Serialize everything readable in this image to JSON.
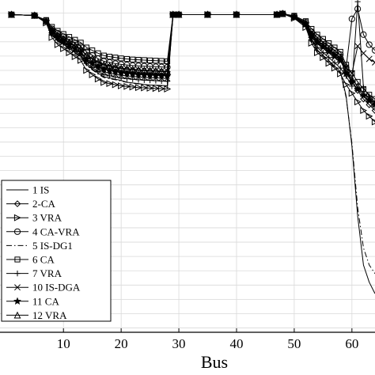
{
  "chart_data": {
    "type": "line",
    "title": "",
    "xlabel": "Bus",
    "ylabel": "",
    "xlim": [
      -1,
      64
    ],
    "ylim": [
      0.8885,
      1.0046
    ],
    "x_ticks": [
      10,
      20,
      30,
      40,
      50,
      60
    ],
    "x_tick_labels": [
      "10",
      "20",
      "30",
      "40",
      "50",
      "60"
    ],
    "grid": true,
    "legend_position": "bottom-left",
    "series": [
      {
        "name": "1 IS",
        "marker": "none",
        "dash": "solid",
        "x": [
          1,
          5,
          7,
          8,
          9,
          10,
          11,
          12,
          13,
          14,
          15,
          16,
          17,
          18,
          19,
          20,
          21,
          22,
          23,
          24,
          25,
          26,
          27,
          28,
          29,
          30,
          35,
          40,
          47,
          48,
          50,
          52,
          53,
          54,
          55,
          56,
          57,
          58,
          59,
          60,
          61,
          62,
          63,
          64
        ],
        "y": [
          0.9995,
          0.9992,
          0.997,
          0.9925,
          0.9905,
          0.9891,
          0.9876,
          0.9862,
          0.985,
          0.982,
          0.9805,
          0.979,
          0.9778,
          0.9774,
          0.9769,
          0.9765,
          0.9759,
          0.9756,
          0.9754,
          0.9751,
          0.9749,
          0.9748,
          0.9747,
          0.9746,
          0.9995,
          0.9995,
          0.9995,
          0.9995,
          0.9995,
          0.9998,
          0.9985,
          0.9955,
          0.9905,
          0.9872,
          0.9853,
          0.9834,
          0.9815,
          0.9795,
          0.971,
          0.9535,
          0.929,
          0.912,
          0.906,
          0.902
        ]
      },
      {
        "name": "2-CA",
        "marker": "diamond",
        "dash": "solid",
        "x": [
          1,
          5,
          7,
          8,
          9,
          10,
          11,
          12,
          13,
          14,
          15,
          16,
          17,
          18,
          19,
          20,
          21,
          22,
          23,
          24,
          25,
          26,
          27,
          28,
          29,
          30,
          35,
          40,
          47,
          48,
          50,
          52,
          53,
          54,
          55,
          56,
          57,
          58,
          59,
          60,
          61,
          62,
          63,
          64
        ],
        "y": [
          0.9995,
          0.9992,
          0.9972,
          0.994,
          0.9922,
          0.9908,
          0.9895,
          0.9883,
          0.9872,
          0.9852,
          0.984,
          0.9827,
          0.9818,
          0.9814,
          0.981,
          0.9806,
          0.9804,
          0.9802,
          0.98,
          0.9799,
          0.9798,
          0.9797,
          0.9796,
          0.9795,
          0.9995,
          0.9995,
          0.9995,
          0.9995,
          0.9995,
          0.9998,
          0.9988,
          0.9965,
          0.9928,
          0.9905,
          0.989,
          0.9875,
          0.986,
          0.9845,
          0.98,
          0.976,
          0.973,
          0.97,
          0.968,
          0.966
        ]
      },
      {
        "name": "3 VRA",
        "marker": "triangle-right",
        "dash": "solid",
        "x": [
          1,
          5,
          7,
          8,
          9,
          10,
          11,
          12,
          13,
          14,
          15,
          16,
          17,
          18,
          19,
          20,
          21,
          22,
          23,
          24,
          25,
          26,
          27,
          28,
          29,
          30,
          35,
          40,
          47,
          48,
          50,
          52,
          53,
          54,
          55,
          56,
          57,
          58,
          59,
          60,
          61,
          62,
          63,
          64
        ],
        "y": [
          0.9995,
          0.9992,
          0.9966,
          0.9915,
          0.989,
          0.9876,
          0.9862,
          0.9848,
          0.9835,
          0.98,
          0.9785,
          0.977,
          0.9758,
          0.9754,
          0.975,
          0.9746,
          0.9744,
          0.9742,
          0.974,
          0.9739,
          0.9738,
          0.9737,
          0.9736,
          0.9735,
          0.9995,
          0.9995,
          0.9995,
          0.9995,
          0.9995,
          0.9998,
          0.9982,
          0.995,
          0.9895,
          0.9862,
          0.9845,
          0.9825,
          0.9808,
          0.9788,
          0.975,
          0.972,
          0.969,
          0.966,
          0.964,
          0.962
        ]
      },
      {
        "name": "4 CA-VRA",
        "marker": "circle",
        "dash": "solid",
        "x": [
          1,
          5,
          7,
          8,
          9,
          10,
          11,
          12,
          13,
          14,
          15,
          16,
          17,
          18,
          19,
          20,
          21,
          22,
          23,
          24,
          25,
          26,
          27,
          28,
          29,
          30,
          35,
          40,
          47,
          48,
          50,
          52,
          53,
          54,
          55,
          56,
          57,
          58,
          59,
          60,
          61,
          62,
          63,
          64
        ],
        "y": [
          0.9995,
          0.9992,
          0.9974,
          0.9945,
          0.993,
          0.9918,
          0.9906,
          0.9895,
          0.9884,
          0.9865,
          0.9853,
          0.9841,
          0.9832,
          0.9828,
          0.9824,
          0.9821,
          0.9819,
          0.9817,
          0.9816,
          0.9815,
          0.9814,
          0.9813,
          0.9812,
          0.9811,
          0.9995,
          0.9995,
          0.9995,
          0.9995,
          0.9995,
          0.9998,
          0.9989,
          0.9968,
          0.9935,
          0.9915,
          0.99,
          0.9885,
          0.987,
          0.9855,
          0.981,
          0.998,
          1.0015,
          0.9925,
          0.989,
          0.987
        ]
      },
      {
        "name": "5 IS-DG1",
        "marker": "none",
        "dash": "dashdot",
        "x": [
          1,
          5,
          7,
          8,
          9,
          10,
          11,
          12,
          13,
          14,
          15,
          16,
          17,
          18,
          19,
          20,
          21,
          22,
          23,
          24,
          25,
          26,
          27,
          28,
          29,
          30,
          35,
          40,
          47,
          48,
          50,
          52,
          53,
          54,
          55,
          56,
          57,
          58,
          59,
          60,
          61,
          62,
          63,
          64
        ],
        "y": [
          0.9995,
          0.9992,
          0.9969,
          0.9922,
          0.9902,
          0.9888,
          0.9873,
          0.9859,
          0.9847,
          0.9817,
          0.9802,
          0.9787,
          0.9775,
          0.9771,
          0.9767,
          0.9763,
          0.9758,
          0.9755,
          0.9753,
          0.975,
          0.9748,
          0.9747,
          0.9746,
          0.9745,
          0.9995,
          0.9995,
          0.9995,
          0.9995,
          0.9995,
          0.9998,
          0.9984,
          0.9953,
          0.99,
          0.9868,
          0.985,
          0.983,
          0.9812,
          0.9792,
          0.9705,
          0.9545,
          0.932,
          0.918,
          0.912,
          0.909
        ]
      },
      {
        "name": "6 CA",
        "marker": "square",
        "dash": "solid",
        "x": [
          1,
          5,
          7,
          8,
          9,
          10,
          11,
          12,
          13,
          14,
          15,
          16,
          17,
          18,
          19,
          20,
          21,
          22,
          23,
          24,
          25,
          26,
          27,
          28,
          29,
          30,
          35,
          40,
          47,
          48,
          50,
          52,
          53,
          54,
          55,
          56,
          57,
          58,
          59,
          60,
          61,
          62,
          63,
          64
        ],
        "y": [
          0.9995,
          0.9992,
          0.9976,
          0.9952,
          0.9938,
          0.9927,
          0.9917,
          0.9907,
          0.9897,
          0.988,
          0.987,
          0.986,
          0.9852,
          0.9848,
          0.9845,
          0.9842,
          0.984,
          0.9838,
          0.9837,
          0.9836,
          0.9835,
          0.9834,
          0.9833,
          0.9832,
          0.9995,
          0.9995,
          0.9995,
          0.9995,
          0.9995,
          0.9998,
          0.9991,
          0.9972,
          0.9945,
          0.9925,
          0.991,
          0.9895,
          0.988,
          0.9865,
          0.982,
          0.979,
          0.976,
          0.9735,
          0.9715,
          0.97
        ]
      },
      {
        "name": "7 VRA",
        "marker": "plus",
        "dash": "solid",
        "x": [
          1,
          5,
          7,
          8,
          9,
          10,
          11,
          12,
          13,
          14,
          15,
          16,
          17,
          18,
          19,
          20,
          21,
          22,
          23,
          24,
          25,
          26,
          27,
          28,
          29,
          30,
          35,
          40,
          47,
          48,
          50,
          52,
          53,
          54,
          55,
          56,
          57,
          58,
          59,
          60,
          61,
          62,
          63,
          64
        ],
        "y": [
          0.9995,
          0.9992,
          0.997,
          0.9928,
          0.9908,
          0.9894,
          0.988,
          0.9866,
          0.9854,
          0.9825,
          0.981,
          0.9796,
          0.9785,
          0.9781,
          0.9777,
          0.9773,
          0.9771,
          0.9769,
          0.9767,
          0.9766,
          0.9765,
          0.9764,
          0.9763,
          0.9762,
          0.9995,
          0.9995,
          0.9995,
          0.9995,
          0.9995,
          0.9998,
          0.9985,
          0.9958,
          0.991,
          0.988,
          0.9862,
          0.9845,
          0.9827,
          0.9808,
          0.978,
          0.9745,
          1.004,
          0.974,
          0.971,
          0.969
        ]
      },
      {
        "name": "10 IS-DGA",
        "marker": "cross",
        "dash": "solid",
        "x": [
          1,
          5,
          7,
          8,
          9,
          10,
          11,
          12,
          13,
          14,
          15,
          16,
          17,
          18,
          19,
          20,
          21,
          22,
          23,
          24,
          25,
          26,
          27,
          28,
          29,
          30,
          35,
          40,
          47,
          48,
          50,
          52,
          53,
          54,
          55,
          56,
          57,
          58,
          59,
          60,
          61,
          62,
          63,
          64
        ],
        "y": [
          0.9995,
          0.9992,
          0.9971,
          0.9932,
          0.9913,
          0.9899,
          0.9885,
          0.9872,
          0.986,
          0.9833,
          0.9819,
          0.9805,
          0.9795,
          0.9791,
          0.9787,
          0.9783,
          0.9781,
          0.9779,
          0.9777,
          0.9776,
          0.9775,
          0.9774,
          0.9773,
          0.9772,
          0.9995,
          0.9995,
          0.9995,
          0.9995,
          0.9995,
          0.9998,
          0.9986,
          0.996,
          0.9915,
          0.9895,
          0.9878,
          0.9862,
          0.9845,
          0.983,
          0.981,
          0.979,
          0.9885,
          0.986,
          0.984,
          0.9828
        ]
      },
      {
        "name": "11 CA",
        "marker": "star",
        "dash": "solid",
        "x": [
          1,
          5,
          7,
          8,
          9,
          10,
          11,
          12,
          13,
          14,
          15,
          16,
          17,
          18,
          19,
          20,
          21,
          22,
          23,
          24,
          25,
          26,
          27,
          28,
          29,
          30,
          35,
          40,
          47,
          48,
          50,
          52,
          53,
          54,
          55,
          56,
          57,
          58,
          59,
          60,
          61,
          62,
          63,
          64
        ],
        "y": [
          0.9995,
          0.9992,
          0.9972,
          0.9936,
          0.9917,
          0.9903,
          0.989,
          0.9877,
          0.9866,
          0.984,
          0.9827,
          0.9814,
          0.9804,
          0.98,
          0.9796,
          0.9792,
          0.979,
          0.9788,
          0.9786,
          0.9785,
          0.9784,
          0.9783,
          0.9782,
          0.9781,
          0.9995,
          0.9995,
          0.9995,
          0.9995,
          0.9995,
          0.9998,
          0.9987,
          0.9962,
          0.992,
          0.9897,
          0.9882,
          0.9866,
          0.985,
          0.9835,
          0.979,
          0.976,
          0.9735,
          0.9712,
          0.9695,
          0.968
        ]
      },
      {
        "name": "12 VRA",
        "marker": "triangle-up",
        "dash": "solid",
        "x": [
          1,
          5,
          7,
          8,
          9,
          10,
          11,
          12,
          13,
          14,
          15,
          16,
          17,
          18,
          19,
          20,
          21,
          22,
          23,
          24,
          25,
          26,
          27,
          28,
          29,
          30,
          35,
          40,
          47,
          48,
          50,
          52,
          53,
          54,
          55,
          56,
          57,
          58,
          59,
          60,
          61,
          62,
          63,
          64
        ],
        "y": [
          0.9995,
          0.9992,
          0.9973,
          0.9941,
          0.9924,
          0.9911,
          0.9899,
          0.9887,
          0.9876,
          0.9853,
          0.9841,
          0.9829,
          0.982,
          0.9816,
          0.9812,
          0.9808,
          0.9806,
          0.9804,
          0.9802,
          0.9801,
          0.98,
          0.9799,
          0.9798,
          0.9797,
          0.9995,
          0.9995,
          0.9995,
          0.9995,
          0.9995,
          0.9998,
          0.9988,
          0.9964,
          0.9925,
          0.9902,
          0.9887,
          0.9871,
          0.9855,
          0.984,
          0.98,
          0.977,
          0.9745,
          0.972,
          0.97,
          0.9685
        ]
      }
    ]
  }
}
